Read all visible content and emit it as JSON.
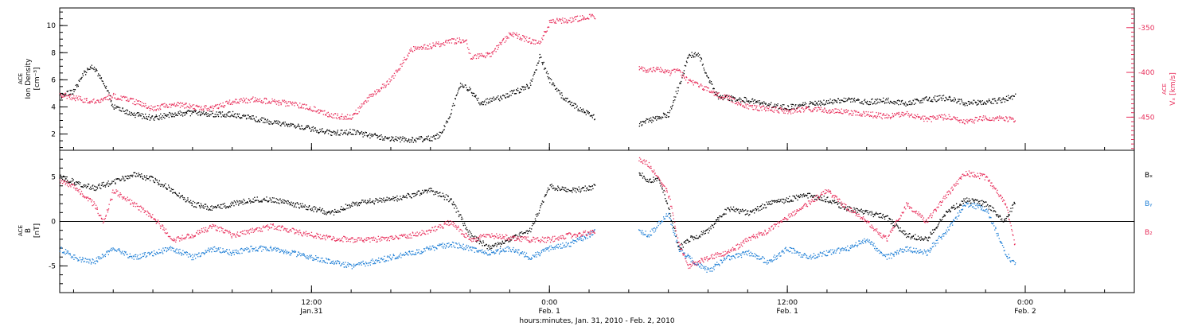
{
  "colors": {
    "black": "#000000",
    "pink": "#e8305c",
    "blue": "#1f7fd6"
  },
  "xaxis": {
    "title": "hours:minutes, Jan. 31, 2010 - Feb. 2, 2010",
    "ticks": [
      {
        "hours": 12,
        "time": "12:00",
        "date": "Jan.31"
      },
      {
        "hours": 24,
        "time": "0:00",
        "date": "Feb. 1"
      },
      {
        "hours": 36,
        "time": "12:00",
        "date": "Feb. 1"
      },
      {
        "hours": 48,
        "time": "0:00",
        "date": "Feb. 2"
      }
    ]
  },
  "chart_data": [
    {
      "type": "scatter",
      "title": "",
      "x_unit": "hours since Jan. 31, 2010 00:00",
      "xlim": [
        -0.7,
        53.5
      ],
      "left_axis": {
        "label_lines": [
          "ACE",
          "Ion Density",
          "[cm⁻³]"
        ],
        "ylim": [
          0.8,
          11.3
        ],
        "ticks": [
          "2",
          "4",
          "6",
          "8",
          "10"
        ]
      },
      "right_axis": {
        "label_lines": [
          "ACE",
          "Vₓ [km/s]"
        ],
        "ylim": [
          -487,
          -328
        ],
        "ticks": [
          "-350",
          "-400",
          "-450"
        ]
      },
      "series": [
        {
          "name": "Ion Density",
          "axis": "left",
          "color": "black",
          "x": [
            -0.7,
            0,
            0.5,
            0.9,
            1.2,
            1.6,
            2,
            3,
            4,
            5,
            6,
            7,
            8,
            9,
            10,
            11,
            12,
            13,
            14,
            15,
            16,
            17,
            18,
            18.5,
            19,
            19.5,
            20,
            20.5,
            21,
            21.5,
            22,
            22.5,
            23,
            23.5,
            24,
            24.5,
            25,
            25.5,
            26,
            26.3,
            28.5,
            29,
            29.5,
            30,
            30.5,
            31,
            31.5,
            32,
            32.5,
            33,
            33.5,
            34,
            35,
            36,
            37,
            38,
            39,
            40,
            41,
            42,
            43,
            44,
            45,
            46,
            47,
            47.5
          ],
          "y": [
            4.8,
            5.2,
            6.5,
            7.0,
            6.5,
            5.5,
            4.0,
            3.5,
            3.2,
            3.5,
            3.6,
            3.5,
            3.5,
            3.2,
            2.9,
            2.7,
            2.4,
            2.1,
            2.2,
            1.9,
            1.7,
            1.6,
            1.7,
            2.0,
            3.5,
            5.8,
            5.2,
            4.3,
            4.5,
            4.7,
            5.0,
            5.3,
            5.6,
            7.8,
            6.0,
            5.0,
            4.3,
            3.9,
            3.5,
            3.2,
            2.8,
            3.0,
            3.3,
            3.5,
            5.5,
            7.8,
            8.0,
            6.0,
            4.8,
            4.7,
            4.6,
            4.5,
            4.2,
            4.0,
            4.2,
            4.4,
            4.6,
            4.4,
            4.5,
            4.3,
            4.6,
            4.7,
            4.3,
            4.4,
            4.6,
            4.9
          ]
        },
        {
          "name": "Vₓ",
          "axis": "right",
          "color": "pink",
          "x": [
            -0.7,
            0,
            1,
            2,
            3,
            4,
            5,
            6,
            7,
            8,
            9,
            10,
            11,
            12,
            13,
            14,
            15,
            16,
            17,
            18,
            19,
            19.8,
            20,
            21,
            22,
            23,
            23.5,
            24,
            25,
            26,
            26.3,
            28.5,
            29,
            29.5,
            30,
            30.5,
            31,
            31.5,
            32,
            32.5,
            33,
            34,
            35,
            36,
            37,
            38,
            39,
            40,
            41,
            42,
            43,
            44,
            45,
            46,
            47,
            47.5
          ],
          "y": [
            -424,
            -428,
            -432,
            -426,
            -432,
            -440,
            -435,
            -438,
            -440,
            -432,
            -430,
            -432,
            -435,
            -440,
            -448,
            -450,
            -425,
            -408,
            -374,
            -370,
            -365,
            -363,
            -383,
            -380,
            -356,
            -364,
            -367,
            -343,
            -341,
            -337,
            -339,
            -395,
            -398,
            -395,
            -400,
            -398,
            -410,
            -413,
            -420,
            -425,
            -428,
            -438,
            -440,
            -443,
            -440,
            -442,
            -444,
            -446,
            -449,
            -446,
            -452,
            -449,
            -455,
            -450,
            -452,
            -452
          ]
        }
      ]
    },
    {
      "type": "scatter",
      "title": "",
      "x_unit": "hours since Jan. 31, 2010 00:00",
      "xlim": [
        -0.7,
        53.5
      ],
      "left_axis": {
        "label_lines": [
          "ACE",
          "B",
          "[nT]"
        ],
        "ylim": [
          -8,
          8
        ],
        "ticks": [
          "5",
          "0",
          "-5"
        ]
      },
      "legend": [
        "Bₓ",
        "Bᵧ",
        "B₂"
      ],
      "series": [
        {
          "name": "Bₓ",
          "color": "black",
          "x": [
            -0.7,
            0,
            1,
            2,
            3,
            4,
            5,
            6,
            7,
            8,
            9,
            10,
            11,
            12,
            13,
            14,
            15,
            16,
            17,
            18,
            19,
            20,
            21,
            22,
            23,
            24,
            25,
            26,
            26.3,
            28.5,
            29,
            29.5,
            30,
            30.5,
            31,
            32,
            33,
            34,
            35,
            36,
            37,
            38,
            39,
            40,
            41,
            42,
            43,
            44,
            45,
            46,
            47,
            47.5
          ],
          "y": [
            5.0,
            4.5,
            3.8,
            4.5,
            5.3,
            4.8,
            3.5,
            2.0,
            1.5,
            2.0,
            2.5,
            2.5,
            2.0,
            1.5,
            1.0,
            2.0,
            2.3,
            2.5,
            3.0,
            3.5,
            2.5,
            -1.5,
            -3.0,
            -2.0,
            -1.0,
            4.0,
            3.5,
            3.8,
            4.0,
            5.5,
            4.5,
            5.0,
            1.5,
            -3.0,
            -2.0,
            -1.0,
            1.5,
            1.0,
            2.0,
            2.5,
            3.0,
            2.5,
            1.5,
            1.0,
            0.5,
            -1.5,
            -2.0,
            1.0,
            2.5,
            2.0,
            0.0,
            2.5
          ]
        },
        {
          "name": "Bᵧ",
          "color": "blue",
          "x": [
            -0.7,
            0,
            1,
            2,
            3,
            4,
            5,
            6,
            7,
            8,
            9,
            10,
            11,
            12,
            13,
            14,
            15,
            16,
            17,
            18,
            19,
            20,
            21,
            22,
            23,
            24,
            25,
            26,
            26.3,
            28.5,
            29,
            30,
            30.5,
            31,
            32,
            33,
            34,
            35,
            36,
            37,
            38,
            39,
            40,
            41,
            42,
            43,
            44,
            45,
            46,
            47,
            47.5
          ],
          "y": [
            -3.0,
            -4.0,
            -4.5,
            -3.0,
            -4.0,
            -3.5,
            -3.0,
            -4.0,
            -3.0,
            -3.5,
            -3.0,
            -3.0,
            -3.5,
            -4.0,
            -4.5,
            -5.0,
            -4.5,
            -4.0,
            -3.5,
            -3.0,
            -2.5,
            -3.0,
            -3.5,
            -3.0,
            -4.0,
            -3.0,
            -2.5,
            -1.5,
            -1.0,
            -1.0,
            -1.5,
            1.0,
            -3.0,
            -4.0,
            -5.5,
            -4.0,
            -3.5,
            -4.5,
            -3.0,
            -4.0,
            -3.5,
            -3.0,
            -2.0,
            -4.0,
            -3.0,
            -3.5,
            -1.0,
            2.0,
            1.5,
            -3.5,
            -5.0
          ]
        },
        {
          "name": "B₂",
          "color": "pink",
          "x": [
            -0.7,
            0,
            1,
            1.5,
            2,
            3,
            4,
            5,
            6,
            7,
            8,
            9,
            10,
            11,
            12,
            13,
            14,
            15,
            16,
            17,
            18,
            19,
            20,
            21,
            22,
            23,
            24,
            25,
            26,
            26.3,
            28.5,
            29,
            30,
            30.5,
            31,
            32,
            33,
            34,
            35,
            36,
            37,
            38,
            39,
            40,
            41,
            42,
            43,
            44,
            45,
            46,
            47,
            47.5
          ],
          "y": [
            4.5,
            4.0,
            2.0,
            0.0,
            3.5,
            2.0,
            0.5,
            -2.0,
            -1.5,
            -0.5,
            -1.5,
            -1.0,
            -0.5,
            -1.0,
            -1.5,
            -1.8,
            -2.0,
            -2.0,
            -1.8,
            -1.5,
            -1.0,
            0.0,
            -2.0,
            -1.5,
            -1.8,
            -2.0,
            -2.0,
            -1.5,
            -1.2,
            -1.0,
            7.0,
            6.5,
            3.0,
            -2.5,
            -5.0,
            -4.0,
            -3.5,
            -2.0,
            -1.0,
            0.5,
            2.0,
            3.5,
            1.5,
            0.0,
            -2.0,
            2.0,
            0.0,
            3.0,
            5.5,
            5.0,
            2.0,
            -3.0
          ]
        }
      ]
    }
  ]
}
